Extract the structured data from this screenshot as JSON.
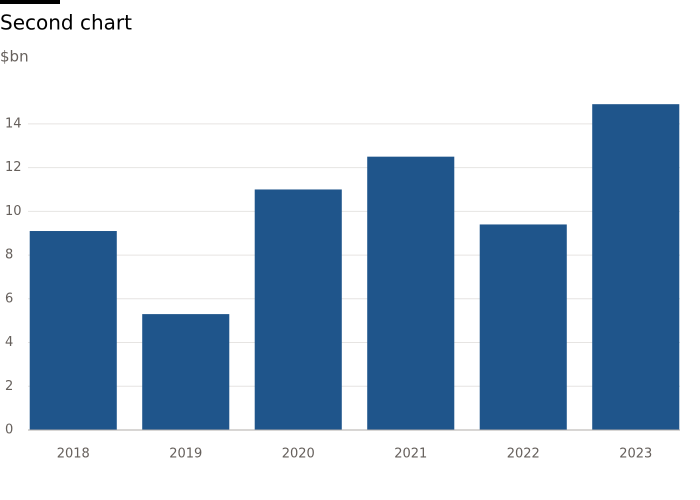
{
  "chart_data": {
    "type": "bar",
    "title": "Second chart",
    "subtitle": "$bn",
    "categories": [
      "2018",
      "2019",
      "2020",
      "2021",
      "2022",
      "2023"
    ],
    "values": [
      9.1,
      5.3,
      11.0,
      12.5,
      9.4,
      14.9
    ],
    "color": "#1f558b",
    "ylim": [
      0,
      15
    ],
    "yticks": [
      0,
      2,
      4,
      6,
      8,
      10,
      12,
      14
    ],
    "grid": true
  }
}
